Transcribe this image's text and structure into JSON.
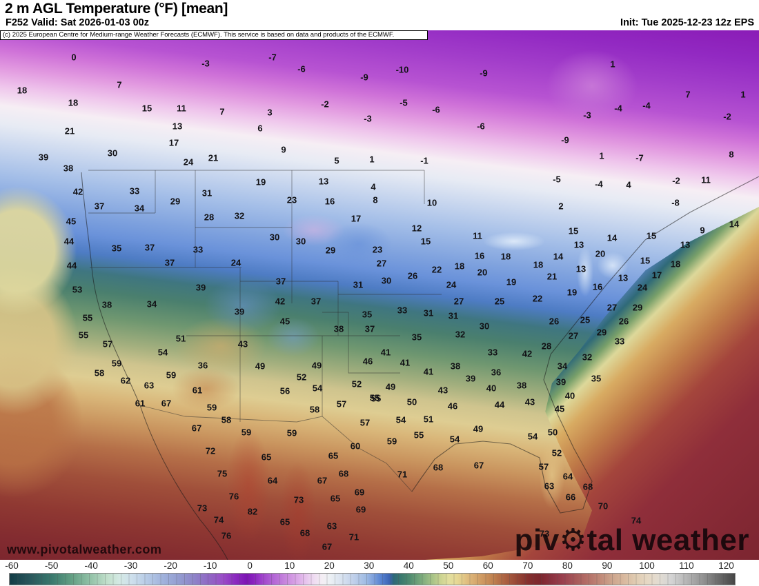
{
  "header": {
    "title": "2 m AGL Temperature (°F) [mean]",
    "valid": "F252 Valid: Sat 2026-01-03 00z",
    "init": "Init: Tue 2025-12-23 12z EPS"
  },
  "copyright": "(c) 2025 European Centre for Medium-range Weather Forecasts (ECMWF). This service is based on data and products of the ECMWF.",
  "watermark": {
    "url": "www.pivotalweather.com",
    "brand_pre": "piv",
    "brand_gear": "⚙",
    "brand_post": "tal weather"
  },
  "chart_data": {
    "type": "heatmap",
    "variable": "2 m AGL Temperature",
    "units": "°F",
    "statistic": "mean",
    "model": "EPS",
    "forecast_hour": 252,
    "init_time": "Tue 2025-12-23 12z",
    "valid_time": "Sat 2026-01-03 00z",
    "colorbar": {
      "ticks": [
        -60,
        -50,
        -40,
        -30,
        -20,
        -10,
        0,
        10,
        20,
        30,
        40,
        50,
        60,
        70,
        80,
        90,
        100,
        110,
        120
      ],
      "domain": [
        -60.7,
        122.0
      ],
      "stops": [
        [
          -62,
          "#123c46"
        ],
        [
          -56,
          "#26545a"
        ],
        [
          -50,
          "#3a7a6e"
        ],
        [
          -45,
          "#64a084"
        ],
        [
          -40,
          "#96c4aa"
        ],
        [
          -36,
          "#c2e0cc"
        ],
        [
          -33,
          "#d4e9e4"
        ],
        [
          -30,
          "#cee0ec"
        ],
        [
          -26,
          "#b6cae6"
        ],
        [
          -22,
          "#a0b2dc"
        ],
        [
          -18,
          "#939cd0"
        ],
        [
          -14,
          "#8e82c8"
        ],
        [
          -10,
          "#9164c4"
        ],
        [
          -7,
          "#9a4ec8"
        ],
        [
          -4,
          "#8c2cc0"
        ],
        [
          -1,
          "#7c14b4"
        ],
        [
          1,
          "#8c24c0"
        ],
        [
          3,
          "#a044cc"
        ],
        [
          6,
          "#b468d6"
        ],
        [
          9,
          "#c988de"
        ],
        [
          12,
          "#dcaae8"
        ],
        [
          15,
          "#ecd2f0"
        ],
        [
          18,
          "#f4eef4"
        ],
        [
          20,
          "#ecf0f4"
        ],
        [
          23,
          "#d8e2f0"
        ],
        [
          26,
          "#c0d0ea"
        ],
        [
          29,
          "#a0bce4"
        ],
        [
          31,
          "#7da0dc"
        ],
        [
          33,
          "#5480d0"
        ],
        [
          35,
          "#3c64b4"
        ],
        [
          36,
          "#2e6878"
        ],
        [
          38,
          "#3a7a6e"
        ],
        [
          40,
          "#4e8a70"
        ],
        [
          43,
          "#7aaa7c"
        ],
        [
          46,
          "#aac488"
        ],
        [
          48,
          "#ccd492"
        ],
        [
          50,
          "#e2de9e"
        ],
        [
          52,
          "#e6d894"
        ],
        [
          55,
          "#deb97c"
        ],
        [
          58,
          "#d09c64"
        ],
        [
          61,
          "#c08250"
        ],
        [
          64,
          "#ac6242"
        ],
        [
          67,
          "#984836"
        ],
        [
          70,
          "#842f2e"
        ],
        [
          73,
          "#7c272e"
        ],
        [
          76,
          "#8c3240"
        ],
        [
          79,
          "#9c4250"
        ],
        [
          82,
          "#a85a5a"
        ],
        [
          85,
          "#b47068"
        ],
        [
          88,
          "#c08878"
        ],
        [
          91,
          "#cca48c"
        ],
        [
          94,
          "#d8b89e"
        ],
        [
          97,
          "#e0ccb2"
        ],
        [
          100,
          "#e6d8c4"
        ],
        [
          103,
          "#e2dcd2"
        ],
        [
          106,
          "#d4d4d4"
        ],
        [
          110,
          "#b4b4b4"
        ],
        [
          114,
          "#929292"
        ],
        [
          118,
          "#6a6a6a"
        ],
        [
          122,
          "#464646"
        ]
      ]
    },
    "stations": [
      [
        "0",
        107,
        83
      ],
      [
        "7",
        173,
        123
      ],
      [
        "-3",
        298,
        92
      ],
      [
        "-7",
        395,
        83
      ],
      [
        "-6",
        437,
        100
      ],
      [
        "-9",
        528,
        112
      ],
      [
        "-10",
        583,
        101
      ],
      [
        "-9",
        701,
        106
      ],
      [
        "1",
        888,
        93
      ],
      [
        "-2",
        471,
        151
      ],
      [
        "3",
        391,
        163
      ],
      [
        "-5",
        585,
        149
      ],
      [
        "-6",
        632,
        159
      ],
      [
        "-3",
        533,
        172
      ],
      [
        "-6",
        697,
        183
      ],
      [
        "-4",
        896,
        157
      ],
      [
        "-4",
        937,
        153
      ],
      [
        "-3",
        851,
        167
      ],
      [
        "7",
        997,
        137
      ],
      [
        "1",
        1077,
        137
      ],
      [
        "-2",
        1054,
        169
      ],
      [
        "-9",
        819,
        203
      ],
      [
        "1",
        872,
        226
      ],
      [
        "-7",
        927,
        229
      ],
      [
        "-5",
        807,
        260
      ],
      [
        "-4",
        868,
        267
      ],
      [
        "-2",
        980,
        262
      ],
      [
        "11",
        1023,
        261
      ],
      [
        "8",
        1060,
        224
      ],
      [
        "-8",
        979,
        294
      ],
      [
        "2",
        813,
        299
      ],
      [
        "4",
        911,
        268
      ],
      [
        "18",
        32,
        131
      ],
      [
        "18",
        106,
        149
      ],
      [
        "15",
        213,
        157
      ],
      [
        "11",
        263,
        157
      ],
      [
        "13",
        257,
        183
      ],
      [
        "7",
        322,
        162
      ],
      [
        "6",
        377,
        186
      ],
      [
        "21",
        101,
        190
      ],
      [
        "17",
        252,
        207
      ],
      [
        "9",
        411,
        217
      ],
      [
        "5",
        488,
        233
      ],
      [
        "30",
        163,
        222
      ],
      [
        "24",
        273,
        235
      ],
      [
        "21",
        309,
        229
      ],
      [
        "1",
        539,
        231
      ],
      [
        "-1",
        615,
        233
      ],
      [
        "19",
        378,
        264
      ],
      [
        "13",
        469,
        263
      ],
      [
        "4",
        541,
        271
      ],
      [
        "23",
        423,
        290
      ],
      [
        "16",
        478,
        292
      ],
      [
        "8",
        544,
        290
      ],
      [
        "10",
        626,
        294
      ],
      [
        "17",
        516,
        317
      ],
      [
        "12",
        604,
        331
      ],
      [
        "39",
        63,
        228
      ],
      [
        "38",
        99,
        244
      ],
      [
        "42",
        113,
        278
      ],
      [
        "33",
        195,
        277
      ],
      [
        "37",
        144,
        299
      ],
      [
        "34",
        202,
        302
      ],
      [
        "29",
        254,
        292
      ],
      [
        "31",
        300,
        280
      ],
      [
        "28",
        303,
        315
      ],
      [
        "32",
        347,
        313
      ],
      [
        "45",
        103,
        321
      ],
      [
        "44",
        100,
        350
      ],
      [
        "35",
        169,
        360
      ],
      [
        "37",
        217,
        359
      ],
      [
        "33",
        287,
        362
      ],
      [
        "24",
        342,
        381
      ],
      [
        "44",
        104,
        385
      ],
      [
        "37",
        246,
        381
      ],
      [
        "53",
        112,
        420
      ],
      [
        "38",
        155,
        442
      ],
      [
        "34",
        220,
        441
      ],
      [
        "39",
        291,
        417
      ],
      [
        "39",
        347,
        452
      ],
      [
        "55",
        127,
        461
      ],
      [
        "55",
        121,
        486
      ],
      [
        "57",
        156,
        499
      ],
      [
        "51",
        262,
        491
      ],
      [
        "43",
        352,
        499
      ],
      [
        "54",
        236,
        511
      ],
      [
        "59",
        169,
        527
      ],
      [
        "36",
        294,
        530
      ],
      [
        "58",
        144,
        541
      ],
      [
        "62",
        182,
        552
      ],
      [
        "63",
        216,
        559
      ],
      [
        "59",
        248,
        544
      ],
      [
        "61",
        286,
        566
      ],
      [
        "49",
        377,
        531
      ],
      [
        "30",
        398,
        344
      ],
      [
        "30",
        436,
        350
      ],
      [
        "29",
        479,
        363
      ],
      [
        "23",
        547,
        362
      ],
      [
        "15",
        617,
        350
      ],
      [
        "11",
        692,
        342
      ],
      [
        "16",
        695,
        371
      ],
      [
        "18",
        733,
        372
      ],
      [
        "27",
        553,
        382
      ],
      [
        "22",
        633,
        391
      ],
      [
        "18",
        666,
        386
      ],
      [
        "20",
        699,
        395
      ],
      [
        "26",
        598,
        400
      ],
      [
        "30",
        560,
        407
      ],
      [
        "24",
        654,
        413
      ],
      [
        "19",
        741,
        409
      ],
      [
        "31",
        519,
        413
      ],
      [
        "37",
        407,
        408
      ],
      [
        "42",
        406,
        437
      ],
      [
        "37",
        458,
        437
      ],
      [
        "27",
        665,
        437
      ],
      [
        "25",
        724,
        437
      ],
      [
        "35",
        532,
        456
      ],
      [
        "33",
        583,
        450
      ],
      [
        "31",
        621,
        454
      ],
      [
        "31",
        657,
        458
      ],
      [
        "45",
        413,
        466
      ],
      [
        "38",
        491,
        477
      ],
      [
        "37",
        536,
        477
      ],
      [
        "30",
        702,
        473
      ],
      [
        "35",
        604,
        489
      ],
      [
        "32",
        667,
        485
      ],
      [
        "41",
        559,
        511
      ],
      [
        "46",
        533,
        524
      ],
      [
        "41",
        587,
        526
      ],
      [
        "33",
        714,
        511
      ],
      [
        "38",
        660,
        531
      ],
      [
        "41",
        621,
        539
      ],
      [
        "36",
        719,
        540
      ],
      [
        "49",
        459,
        530
      ],
      [
        "52",
        437,
        547
      ],
      [
        "39",
        682,
        549
      ],
      [
        "43",
        642,
        566
      ],
      [
        "40",
        712,
        563
      ],
      [
        "54",
        460,
        563
      ],
      [
        "52",
        517,
        557
      ],
      [
        "49",
        566,
        561
      ],
      [
        "56",
        413,
        567
      ],
      [
        "55",
        543,
        577
      ],
      [
        "15",
        831,
        335
      ],
      [
        "13",
        839,
        355
      ],
      [
        "14",
        809,
        372
      ],
      [
        "14",
        887,
        345
      ],
      [
        "20",
        870,
        368
      ],
      [
        "15",
        944,
        342
      ],
      [
        "9",
        1018,
        334
      ],
      [
        "14",
        1064,
        325
      ],
      [
        "13",
        993,
        355
      ],
      [
        "18",
        780,
        384
      ],
      [
        "21",
        800,
        401
      ],
      [
        "13",
        842,
        390
      ],
      [
        "15",
        935,
        378
      ],
      [
        "18",
        979,
        383
      ],
      [
        "17",
        952,
        399
      ],
      [
        "13",
        903,
        403
      ],
      [
        "16",
        866,
        416
      ],
      [
        "19",
        829,
        424
      ],
      [
        "24",
        931,
        417
      ],
      [
        "22",
        779,
        433
      ],
      [
        "27",
        887,
        446
      ],
      [
        "29",
        924,
        446
      ],
      [
        "26",
        803,
        466
      ],
      [
        "25",
        848,
        464
      ],
      [
        "26",
        904,
        466
      ],
      [
        "29",
        872,
        482
      ],
      [
        "27",
        831,
        487
      ],
      [
        "28",
        792,
        502
      ],
      [
        "33",
        898,
        495
      ],
      [
        "42",
        764,
        513
      ],
      [
        "32",
        851,
        518
      ],
      [
        "34",
        815,
        531
      ],
      [
        "39",
        813,
        554
      ],
      [
        "35",
        864,
        549
      ],
      [
        "40",
        826,
        574
      ],
      [
        "38",
        756,
        559
      ],
      [
        "61",
        203,
        585
      ],
      [
        "67",
        241,
        585
      ],
      [
        "59",
        307,
        591
      ],
      [
        "58",
        328,
        609
      ],
      [
        "67",
        285,
        621
      ],
      [
        "59",
        357,
        627
      ],
      [
        "72",
        305,
        654
      ],
      [
        "75",
        322,
        687
      ],
      [
        "76",
        339,
        720
      ],
      [
        "73",
        293,
        737
      ],
      [
        "82",
        366,
        742
      ],
      [
        "74",
        317,
        754
      ],
      [
        "76",
        328,
        777
      ],
      [
        "57",
        495,
        586
      ],
      [
        "55",
        545,
        578
      ],
      [
        "58",
        456,
        594
      ],
      [
        "50",
        597,
        583
      ],
      [
        "46",
        656,
        589
      ],
      [
        "44",
        724,
        587
      ],
      [
        "59",
        423,
        628
      ],
      [
        "57",
        529,
        613
      ],
      [
        "54",
        581,
        609
      ],
      [
        "51",
        621,
        608
      ],
      [
        "49",
        693,
        622
      ],
      [
        "55",
        607,
        631
      ],
      [
        "59",
        568,
        640
      ],
      [
        "54",
        659,
        637
      ],
      [
        "54",
        772,
        633
      ],
      [
        "60",
        515,
        647
      ],
      [
        "65",
        483,
        661
      ],
      [
        "65",
        386,
        663
      ],
      [
        "64",
        395,
        697
      ],
      [
        "68",
        498,
        687
      ],
      [
        "67",
        467,
        697
      ],
      [
        "71",
        583,
        688
      ],
      [
        "68",
        635,
        678
      ],
      [
        "67",
        694,
        675
      ],
      [
        "73",
        433,
        725
      ],
      [
        "65",
        486,
        723
      ],
      [
        "69",
        521,
        714
      ],
      [
        "69",
        523,
        739
      ],
      [
        "65",
        413,
        757
      ],
      [
        "63",
        481,
        763
      ],
      [
        "68",
        442,
        773
      ],
      [
        "71",
        513,
        779
      ],
      [
        "67",
        474,
        793
      ],
      [
        "43",
        768,
        583
      ],
      [
        "45",
        811,
        593
      ],
      [
        "50",
        801,
        627
      ],
      [
        "52",
        807,
        657
      ],
      [
        "57",
        788,
        677
      ],
      [
        "64",
        823,
        691
      ],
      [
        "63",
        796,
        705
      ],
      [
        "66",
        827,
        721
      ],
      [
        "68",
        852,
        706
      ],
      [
        "70",
        874,
        734
      ],
      [
        "74",
        922,
        755
      ],
      [
        "73",
        789,
        774
      ]
    ]
  }
}
